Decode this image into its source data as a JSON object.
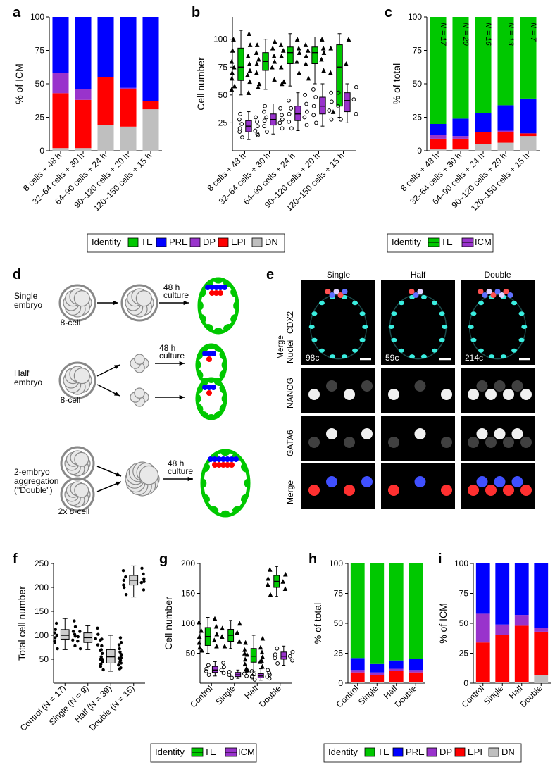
{
  "colors": {
    "TE": "#00c800",
    "PRE": "#0000ff",
    "DP": "#9933cc",
    "EPI": "#ff0000",
    "DN": "#bfbfbf",
    "ICM": "#9933cc",
    "box_gray": "#cccccc",
    "bg": "#ffffff"
  },
  "font": {
    "tick": 12,
    "axis_title": 14,
    "panel": 20,
    "legend": 13,
    "count": 11
  },
  "legends": {
    "identity5": {
      "title": "Identity",
      "items": [
        "TE",
        "PRE",
        "DP",
        "EPI",
        "DN"
      ]
    },
    "identity2": {
      "title": "Identity",
      "items": [
        "TE",
        "ICM"
      ]
    }
  },
  "panel_a": {
    "ylabel": "% of ICM",
    "ylim": [
      0,
      100
    ],
    "ytick": 25,
    "categories": [
      "8 cells + 48 h",
      "32–64 cells + 30 h",
      "64–90 cells + 24 h",
      "90–120 cells + 20 h",
      "120–150 cells + 15 h"
    ],
    "stacks": [
      "DN",
      "EPI",
      "DP",
      "PRE"
    ],
    "values": [
      {
        "DN": 2,
        "EPI": 41,
        "DP": 15,
        "PRE": 42
      },
      {
        "DN": 2,
        "EPI": 36,
        "DP": 8,
        "PRE": 54
      },
      {
        "DN": 19,
        "EPI": 36,
        "DP": 0,
        "PRE": 45
      },
      {
        "DN": 18,
        "EPI": 28,
        "DP": 1,
        "PRE": 53
      },
      {
        "DN": 31,
        "EPI": 6,
        "DP": 0,
        "PRE": 63
      }
    ]
  },
  "panel_b": {
    "ylabel": "Cell number",
    "ylim": [
      0,
      120
    ],
    "yticks": [
      25,
      50,
      75,
      100
    ],
    "categories": [
      "8 cells + 48 h",
      "32–64 cells + 30 h",
      "64–90 cells + 24 h",
      "90–120 cells + 20 h",
      "120–150 cells + 15 h"
    ],
    "series": [
      {
        "name": "TE",
        "color": "#00c800",
        "boxes": [
          {
            "min": 50,
            "q1": 63,
            "med": 75,
            "q3": 92,
            "max": 108,
            "pts": [
              58,
              62,
              65,
              68,
              70,
              72,
              75,
              78,
              80,
              85,
              90,
              95,
              100,
              105,
              55,
              52
            ]
          },
          {
            "min": 55,
            "q1": 72,
            "med": 80,
            "q3": 88,
            "max": 100,
            "pts": [
              60,
              64,
              70,
              75,
              78,
              80,
              82,
              85,
              88,
              92,
              95,
              98,
              57
            ]
          },
          {
            "min": 58,
            "q1": 78,
            "med": 88,
            "q3": 93,
            "max": 105,
            "pts": [
              62,
              70,
              75,
              80,
              85,
              88,
              90,
              92,
              95,
              100,
              60
            ]
          },
          {
            "min": 60,
            "q1": 78,
            "med": 88,
            "q3": 93,
            "max": 102,
            "pts": [
              65,
              72,
              78,
              82,
              85,
              88,
              90,
              92,
              95,
              100
            ]
          },
          {
            "min": 30,
            "q1": 40,
            "med": 75,
            "q3": 95,
            "max": 105,
            "pts": [
              35,
              42,
              70,
              78,
              92,
              100
            ]
          }
        ]
      },
      {
        "name": "ICM",
        "color": "#9933cc",
        "boxes": [
          {
            "min": 10,
            "q1": 17,
            "med": 22,
            "q3": 27,
            "max": 35,
            "pts": [
              12,
              15,
              17,
              18,
              20,
              22,
              24,
              26,
              28,
              30,
              33,
              14
            ]
          },
          {
            "min": 15,
            "q1": 23,
            "med": 28,
            "q3": 33,
            "max": 42,
            "pts": [
              17,
              20,
              22,
              25,
              27,
              28,
              30,
              32,
              35,
              38,
              40
            ]
          },
          {
            "min": 18,
            "q1": 27,
            "med": 33,
            "q3": 40,
            "max": 52,
            "pts": [
              20,
              23,
              26,
              30,
              33,
              35,
              38,
              42,
              45,
              50
            ]
          },
          {
            "min": 22,
            "q1": 33,
            "med": 40,
            "q3": 48,
            "max": 60,
            "pts": [
              25,
              28,
              32,
              36,
              40,
              44,
              48,
              52,
              55
            ]
          },
          {
            "min": 25,
            "q1": 35,
            "med": 45,
            "q3": 52,
            "max": 60,
            "pts": [
              28,
              33,
              40,
              46,
              52,
              57
            ]
          }
        ]
      }
    ]
  },
  "panel_c": {
    "ylabel": "% of total",
    "ylim": [
      0,
      100
    ],
    "ytick": 25,
    "categories": [
      "8 cells + 48 h",
      "32–64 cells + 30 h",
      "64–90 cells + 24 h",
      "90–120 cells + 20 h",
      "120–150 cells + 15 h"
    ],
    "counts": [
      "N = 17",
      "N = 20",
      "N = 16",
      "N = 13",
      "N = 7"
    ],
    "stacks": [
      "DN",
      "EPI",
      "DP",
      "PRE",
      "TE"
    ],
    "values": [
      {
        "DN": 1,
        "EPI": 8,
        "DP": 3,
        "PRE": 8,
        "TE": 80
      },
      {
        "DN": 1,
        "EPI": 8,
        "DP": 2,
        "PRE": 13,
        "TE": 76
      },
      {
        "DN": 5,
        "EPI": 9,
        "DP": 0,
        "PRE": 14,
        "TE": 72
      },
      {
        "DN": 6,
        "EPI": 8,
        "DP": 1,
        "PRE": 19,
        "TE": 66
      },
      {
        "DN": 11,
        "EPI": 2,
        "DP": 0,
        "PRE": 26,
        "TE": 61
      }
    ]
  },
  "panel_d": {
    "rows": [
      {
        "label": "Single\nembryo",
        "sub": "8-cell",
        "culture": "48 h\nculture"
      },
      {
        "label": "Half\nembryo",
        "sub": "8-cell",
        "culture": "48 h\nculture"
      },
      {
        "label": "2-embryo\naggregation\n(\"Double\")",
        "sub": "2x 8-cell",
        "culture": "48 h\nculture"
      }
    ]
  },
  "panel_e": {
    "cols": [
      "Single",
      "Half",
      "Double"
    ],
    "rows": [
      "Merge\nNuclei",
      "NANOG",
      "GATA6",
      "Merge"
    ],
    "row_colors": [
      "#ffffff",
      "#ff4040",
      "#6080ff",
      "#ffffff"
    ],
    "cdx2_color": "#00ff66",
    "cell_counts": [
      "98c",
      "59c",
      "214c"
    ]
  },
  "panel_f": {
    "ylabel": "Total cell number",
    "ylim": [
      0,
      250
    ],
    "yticks": [
      50,
      100,
      150,
      200,
      250
    ],
    "categories": [
      "Control (N = 17)",
      "Single (N = 9)",
      "Half (N = 39)",
      "Double (N = 15)"
    ],
    "color": "#cccccc",
    "boxes": [
      {
        "min": 70,
        "q1": 92,
        "med": 100,
        "q3": 112,
        "max": 135,
        "pts": [
          72,
          78,
          85,
          90,
          95,
          98,
          100,
          102,
          105,
          108,
          112,
          118,
          125,
          130,
          88
        ]
      },
      {
        "min": 70,
        "q1": 85,
        "med": 95,
        "q3": 105,
        "max": 120,
        "pts": [
          72,
          80,
          88,
          93,
          97,
          102,
          108,
          115
        ]
      },
      {
        "min": 25,
        "q1": 42,
        "med": 55,
        "q3": 70,
        "max": 100,
        "pts": [
          28,
          32,
          35,
          38,
          40,
          42,
          45,
          48,
          50,
          52,
          55,
          58,
          62,
          65,
          68,
          72,
          78,
          85,
          92,
          30,
          36,
          44,
          50,
          60,
          70,
          80,
          90,
          95,
          47,
          53
        ]
      },
      {
        "min": 180,
        "q1": 205,
        "med": 215,
        "q3": 225,
        "max": 245,
        "pts": [
          185,
          195,
          205,
          210,
          215,
          218,
          222,
          228,
          235,
          240,
          200,
          212
        ]
      }
    ]
  },
  "panel_g": {
    "ylabel": "Cell number",
    "ylim": [
      0,
      200
    ],
    "yticks": [
      50,
      100,
      150,
      200
    ],
    "categories": [
      "Control",
      "Single",
      "Half",
      "Double"
    ],
    "series": [
      {
        "name": "TE",
        "color": "#00c800",
        "boxes": [
          {
            "min": 50,
            "q1": 63,
            "med": 78,
            "q3": 93,
            "max": 110,
            "pts": [
              55,
              62,
              68,
              72,
              78,
              82,
              88,
              95,
              102,
              108,
              60
            ]
          },
          {
            "min": 58,
            "q1": 70,
            "med": 80,
            "q3": 90,
            "max": 105,
            "pts": [
              62,
              70,
              78,
              85,
              92,
              100
            ]
          },
          {
            "min": 20,
            "q1": 35,
            "med": 45,
            "q3": 58,
            "max": 80,
            "pts": [
              22,
              28,
              32,
              36,
              40,
              44,
              48,
              52,
              56,
              60,
              68,
              75,
              25,
              38,
              50
            ]
          },
          {
            "min": 145,
            "q1": 160,
            "med": 170,
            "q3": 180,
            "max": 195,
            "pts": [
              148,
              158,
              165,
              170,
              175,
              182,
              190
            ]
          }
        ]
      },
      {
        "name": "ICM",
        "color": "#9933cc",
        "boxes": [
          {
            "min": 12,
            "q1": 18,
            "med": 22,
            "q3": 28,
            "max": 36,
            "pts": [
              14,
              17,
              20,
              22,
              24,
              27,
              30,
              34
            ]
          },
          {
            "min": 8,
            "q1": 11,
            "med": 14,
            "q3": 18,
            "max": 22,
            "pts": [
              9,
              12,
              14,
              16,
              19,
              21
            ]
          },
          {
            "min": 5,
            "q1": 9,
            "med": 12,
            "q3": 16,
            "max": 24,
            "pts": [
              6,
              8,
              10,
              11,
              12,
              14,
              15,
              17,
              20,
              22
            ]
          },
          {
            "min": 30,
            "q1": 40,
            "med": 45,
            "q3": 52,
            "max": 62,
            "pts": [
              33,
              38,
              42,
              45,
              48,
              52,
              58
            ]
          }
        ]
      }
    ]
  },
  "panel_h": {
    "ylabel": "% of total",
    "ylim": [
      0,
      100
    ],
    "ytick": 25,
    "categories": [
      "Control",
      "Single",
      "Half",
      "Double"
    ],
    "stacks": [
      "DN",
      "EPI",
      "DP",
      "PRE",
      "TE"
    ],
    "values": [
      {
        "DN": 1,
        "EPI": 8,
        "DP": 2,
        "PRE": 10,
        "TE": 79
      },
      {
        "DN": 1,
        "EPI": 6,
        "DP": 2,
        "PRE": 7,
        "TE": 84
      },
      {
        "DN": 1,
        "EPI": 9,
        "DP": 2,
        "PRE": 7,
        "TE": 81
      },
      {
        "DN": 1,
        "EPI": 8,
        "DP": 2,
        "PRE": 9,
        "TE": 80
      }
    ]
  },
  "panel_i": {
    "ylabel": "% of ICM",
    "ylim": [
      0,
      100
    ],
    "ytick": 25,
    "categories": [
      "Control",
      "Single",
      "Half",
      "Double"
    ],
    "stacks": [
      "DN",
      "EPI",
      "DP",
      "PRE"
    ],
    "values": [
      {
        "DN": 1,
        "EPI": 33,
        "DP": 24,
        "PRE": 42
      },
      {
        "DN": 1,
        "EPI": 39,
        "DP": 9,
        "PRE": 51
      },
      {
        "DN": 1,
        "EPI": 47,
        "DP": 9,
        "PRE": 43
      },
      {
        "DN": 7,
        "EPI": 36,
        "DP": 3,
        "PRE": 54
      }
    ]
  }
}
